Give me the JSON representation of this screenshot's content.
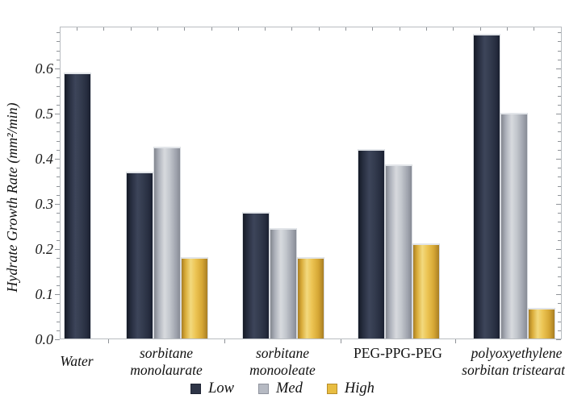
{
  "chart_data": {
    "type": "bar",
    "title": "",
    "xlabel": "",
    "ylabel": "Hydrate Growth Rate (mm²/min)",
    "ylim": [
      0,
      0.693
    ],
    "ytick_step": 0.1,
    "ytick_labels": [
      "0.0",
      "0.1",
      "0.2",
      "0.3",
      "0.4",
      "0.5",
      "0.6"
    ],
    "minor_ytick_step": 0.02,
    "grid": false,
    "legend_position": "bottom",
    "categories": [
      {
        "label": "Water",
        "italic": true
      },
      {
        "label": "sorbitane monolaurate",
        "italic": true
      },
      {
        "label": "sorbitane monooleate",
        "italic": true
      },
      {
        "label": "PEG-PPG-PEG",
        "italic": false
      },
      {
        "label": "polyoxyethylene sorbitan tristearate",
        "italic": true
      }
    ],
    "series": [
      {
        "name": "Low",
        "color": "#2e3547",
        "values": [
          0.59,
          0.37,
          0.28,
          0.42,
          0.675
        ]
      },
      {
        "name": "Med",
        "color": "#b6bac3",
        "values": [
          null,
          0.425,
          0.245,
          0.385,
          0.5
        ]
      },
      {
        "name": "High",
        "color": "#e8bd41",
        "values": [
          null,
          0.18,
          0.18,
          0.21,
          0.068
        ]
      }
    ]
  }
}
